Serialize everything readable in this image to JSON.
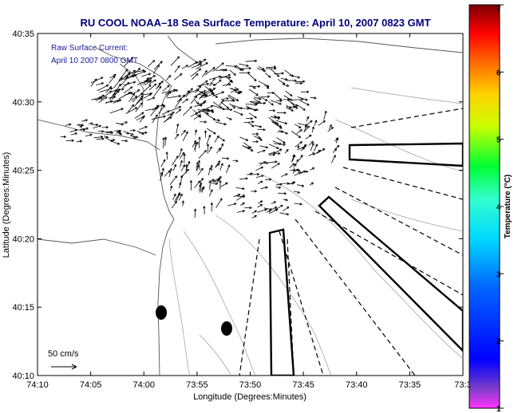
{
  "title": "RU COOL  NOAA–18  Sea Surface Temperature:  April 10, 2007 0823 GMT",
  "annotation": {
    "line1": "Raw Surface Current:",
    "line2": "April 10 2007 0800 GMT"
  },
  "scale": {
    "label": "50 cm/s"
  },
  "axes": {
    "xlabel": "Longitude (Degrees:Minutes)",
    "ylabel": "Latitude (Degrees:Minutes)",
    "xticks": [
      "74:10",
      "74:05",
      "74:00",
      "73:55",
      "73:50",
      "73:45",
      "73:40",
      "73:35",
      "73:3"
    ],
    "yticks": [
      "40:35",
      "40:30",
      "40:25",
      "40:20",
      "40:15",
      "40:10"
    ]
  },
  "colorbar": {
    "label": "Temperature (°C)",
    "min": 1,
    "max": 7,
    "ticks": [
      "7",
      "6",
      "5",
      "4",
      "3",
      "2",
      "1"
    ]
  },
  "colors": {
    "title": "#00007a",
    "annotation": "#1a1aa0",
    "land_outline": "#555555",
    "current_vectors": "#000000"
  }
}
